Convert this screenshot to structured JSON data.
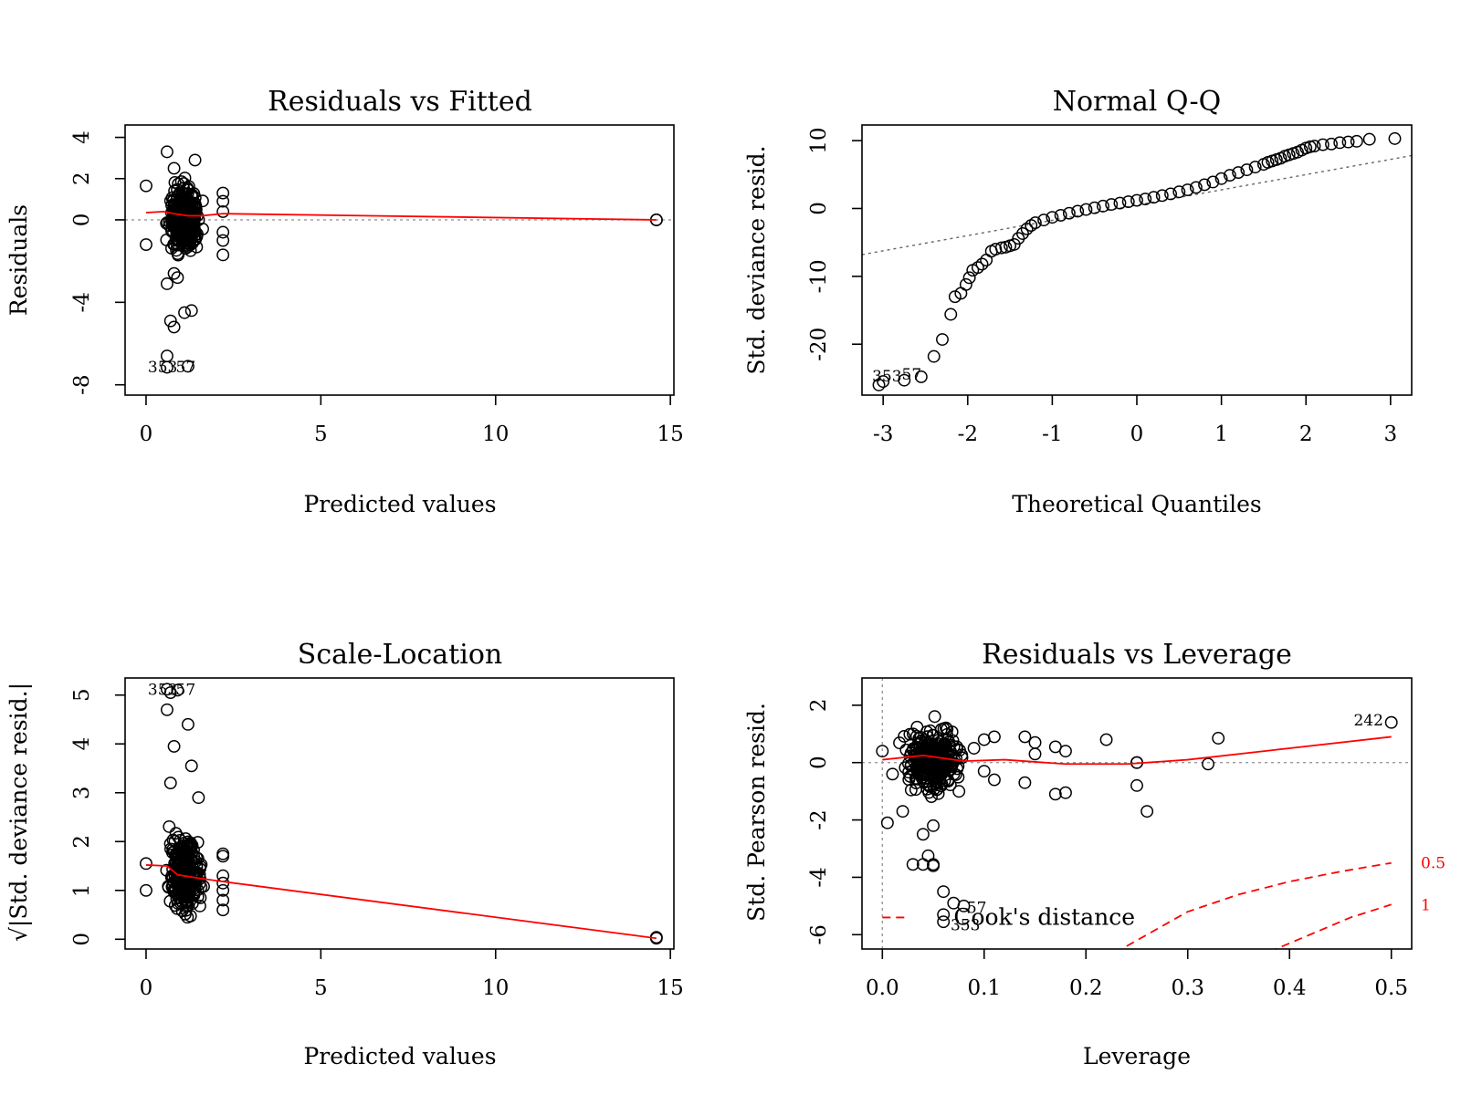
{
  "figure": "R lm diagnostic plots",
  "colors": {
    "points": "#000000",
    "smoother": "#ff0000",
    "reference": "#999999",
    "qqline": "#666666",
    "cook": "#ff0000"
  },
  "chart_data": [
    {
      "type": "scatter",
      "title": "Residuals vs Fitted",
      "xlabel": "Predicted values",
      "ylabel": "Residuals",
      "xlim": [
        -0.6,
        15.1
      ],
      "ylim": [
        -8.5,
        4.6
      ],
      "xticks": [
        0,
        5,
        10,
        15
      ],
      "xtick_labels": [
        "0",
        "5",
        "10",
        "15"
      ],
      "yticks": [
        -8,
        -4,
        0,
        2,
        4
      ],
      "ytick_labels": [
        "-8",
        "-4",
        "0",
        "2",
        "4"
      ],
      "point_labels": [
        "353",
        "57"
      ],
      "reference_line_y": 0,
      "smoother": {
        "x": [
          0,
          0.5,
          0.8,
          1.2,
          1.6,
          2.2,
          14.6
        ],
        "y": [
          0.35,
          0.4,
          0.3,
          0.2,
          0.2,
          0.3,
          0
        ]
      },
      "points": {
        "x": [
          0.0,
          0.0,
          14.6,
          14.6,
          0.6,
          0.6,
          0.6,
          1.2,
          0.8,
          0.7,
          1.3,
          1.1,
          0.6,
          0.8,
          0.9,
          0.8,
          1.4,
          2.2,
          2.2,
          2.2,
          2.2,
          2.2,
          2.2
        ],
        "y": [
          1.65,
          -1.2,
          0.0,
          0.0,
          3.3,
          -6.6,
          -7.15,
          -7.1,
          -5.2,
          -4.9,
          -4.4,
          -4.5,
          -3.1,
          -2.6,
          -2.8,
          2.5,
          2.9,
          1.3,
          0.9,
          0.4,
          -0.6,
          -1.0,
          -1.7
        ]
      },
      "cluster": {
        "x_range": [
          0.5,
          1.7
        ],
        "y_range": [
          -2.5,
          2.5
        ],
        "count": 300
      }
    },
    {
      "type": "scatter",
      "title": "Normal Q-Q",
      "xlabel": "Theoretical Quantiles",
      "ylabel": "Std. deviance resid.",
      "xlim": [
        -3.25,
        3.25
      ],
      "ylim": [
        -27.5,
        12.3
      ],
      "xticks": [
        -3,
        -2,
        -1,
        0,
        1,
        2,
        3
      ],
      "xtick_labels": [
        "-3",
        "-2",
        "-1",
        "0",
        "1",
        "2",
        "3"
      ],
      "yticks": [
        -20,
        -10,
        0,
        10
      ],
      "ytick_labels": [
        "-20",
        "-10",
        "0",
        "10"
      ],
      "point_labels": [
        "353",
        "57"
      ],
      "qq_line": {
        "x": [
          -3.25,
          3.25
        ],
        "y": [
          -6.8,
          7.8
        ]
      },
      "points": {
        "x": [
          -3.05,
          -3.0,
          -2.75,
          -2.55,
          -2.4,
          -2.3,
          -2.2,
          -2.15,
          -2.08,
          -2.02,
          -1.98,
          -1.94,
          -1.88,
          -1.83,
          -1.78,
          -1.72,
          -1.67,
          -1.6,
          -1.55,
          -1.5,
          -1.45,
          -1.4,
          -1.35,
          -1.3,
          -1.25,
          -1.2,
          -1.1,
          -1.0,
          -0.9,
          -0.8,
          -0.7,
          -0.6,
          -0.5,
          -0.4,
          -0.3,
          -0.2,
          -0.1,
          0.0,
          0.1,
          0.2,
          0.3,
          0.4,
          0.5,
          0.6,
          0.7,
          0.8,
          0.9,
          1.0,
          1.1,
          1.2,
          1.3,
          1.4,
          1.5,
          1.55,
          1.6,
          1.65,
          1.7,
          1.75,
          1.8,
          1.85,
          1.9,
          1.95,
          2.0,
          2.05,
          2.1,
          2.2,
          2.3,
          2.4,
          2.5,
          2.6,
          2.75,
          3.05
        ],
        "y": [
          -26.0,
          -25.5,
          -25.3,
          -24.8,
          -21.8,
          -19.3,
          -15.6,
          -13.0,
          -12.5,
          -11.2,
          -10.2,
          -9.1,
          -8.7,
          -8.2,
          -7.6,
          -6.3,
          -6.0,
          -5.8,
          -5.7,
          -5.5,
          -5.3,
          -4.4,
          -3.7,
          -3.0,
          -2.5,
          -2.1,
          -1.7,
          -1.3,
          -1.0,
          -0.7,
          -0.4,
          -0.15,
          0.1,
          0.35,
          0.6,
          0.8,
          1.0,
          1.2,
          1.4,
          1.65,
          1.9,
          2.15,
          2.45,
          2.75,
          3.1,
          3.5,
          3.9,
          4.4,
          4.9,
          5.3,
          5.7,
          6.1,
          6.5,
          6.8,
          7.0,
          7.2,
          7.4,
          7.7,
          7.9,
          8.1,
          8.3,
          8.6,
          8.9,
          9.1,
          9.2,
          9.4,
          9.5,
          9.7,
          9.8,
          9.9,
          10.2,
          10.3
        ]
      }
    },
    {
      "type": "scatter",
      "title": "Scale-Location",
      "xlabel": "Predicted values",
      "ylabel": "√|Std. deviance resid.|",
      "xlim": [
        -0.6,
        15.1
      ],
      "ylim": [
        -0.2,
        5.35
      ],
      "xticks": [
        0,
        5,
        10,
        15
      ],
      "xtick_labels": [
        "0",
        "5",
        "10",
        "15"
      ],
      "yticks": [
        0,
        1,
        2,
        3,
        4,
        5
      ],
      "ytick_labels": [
        "0",
        "1",
        "2",
        "3",
        "4",
        "5"
      ],
      "point_labels": [
        "353",
        "57"
      ],
      "smoother": {
        "x": [
          0,
          0.6,
          0.9,
          1.5,
          2.2,
          14.6
        ],
        "y": [
          1.52,
          1.5,
          1.32,
          1.25,
          1.18,
          0.02
        ]
      },
      "points": {
        "x": [
          0.0,
          0.0,
          14.6,
          14.6,
          0.6,
          0.7,
          0.9,
          0.6,
          1.2,
          0.8,
          1.3,
          0.7,
          1.5,
          2.2,
          2.2,
          2.2,
          2.2,
          2.2,
          2.2,
          2.2
        ],
        "y": [
          1.55,
          1.0,
          0.02,
          0.04,
          5.12,
          5.05,
          5.1,
          4.7,
          4.4,
          3.95,
          3.55,
          3.2,
          2.9,
          1.75,
          1.7,
          1.3,
          1.15,
          1.0,
          0.8,
          0.6
        ]
      },
      "cluster": {
        "x_range": [
          0.5,
          1.7
        ],
        "y_range": [
          0.15,
          2.6
        ],
        "count": 300
      }
    },
    {
      "type": "scatter",
      "title": "Residuals vs Leverage",
      "xlabel": "Leverage",
      "ylabel": "Std. Pearson resid.",
      "xlim": [
        -0.02,
        0.52
      ],
      "ylim": [
        -6.5,
        2.95
      ],
      "xticks": [
        0.0,
        0.1,
        0.2,
        0.3,
        0.4,
        0.5
      ],
      "xtick_labels": [
        "0.0",
        "0.1",
        "0.2",
        "0.3",
        "0.4",
        "0.5"
      ],
      "yticks": [
        -6,
        -4,
        -2,
        0,
        2
      ],
      "ytick_labels": [
        "-6",
        "-4",
        "-2",
        "0",
        "2"
      ],
      "point_labels": [
        "242",
        "57",
        "353"
      ],
      "legend": {
        "entries": [
          "Cook's distance"
        ],
        "position": "bottom-left"
      },
      "cook_contour_labels": [
        "0.5",
        "1"
      ],
      "cook_contours": [
        {
          "level": 0.5,
          "x": [
            0.24,
            0.3,
            0.35,
            0.4,
            0.45,
            0.5
          ],
          "y": [
            -6.4,
            -5.2,
            -4.6,
            -4.15,
            -3.8,
            -3.5
          ]
        },
        {
          "level": 1.0,
          "x": [
            0.38,
            0.42,
            0.46,
            0.5
          ],
          "y": [
            -6.6,
            -6.0,
            -5.4,
            -4.95
          ]
        }
      ],
      "smoother": {
        "x": [
          0.0,
          0.04,
          0.08,
          0.12,
          0.18,
          0.24,
          0.3,
          0.4,
          0.5
        ],
        "y": [
          0.1,
          0.25,
          0.05,
          0.1,
          -0.05,
          -0.05,
          0.1,
          0.5,
          0.9
        ]
      },
      "points": {
        "x": [
          0.0,
          0.01,
          0.02,
          0.04,
          0.05,
          0.06,
          0.07,
          0.08,
          0.09,
          0.1,
          0.1,
          0.11,
          0.11,
          0.14,
          0.14,
          0.15,
          0.15,
          0.17,
          0.17,
          0.18,
          0.18,
          0.22,
          0.25,
          0.25,
          0.25,
          0.26,
          0.32,
          0.33,
          0.5,
          0.06,
          0.06,
          0.03,
          0.04,
          0.05,
          0.05,
          0.045,
          0.005
        ],
        "y": [
          0.4,
          -0.4,
          -1.7,
          -2.5,
          -3.55,
          -4.5,
          -4.9,
          -5.0,
          0.5,
          0.8,
          -0.3,
          0.9,
          -0.6,
          0.9,
          -0.7,
          0.7,
          0.3,
          0.55,
          -1.1,
          0.4,
          -1.05,
          0.8,
          0.0,
          -0.8,
          0.0,
          -1.7,
          -0.05,
          0.85,
          1.4,
          -5.3,
          -5.55,
          -3.55,
          -3.55,
          -2.2,
          -3.6,
          -3.25,
          -2.1
        ]
      },
      "cluster": {
        "x_range": [
          0.01,
          0.09
        ],
        "y_range": [
          -1.6,
          1.8
        ],
        "count": 300
      }
    }
  ]
}
